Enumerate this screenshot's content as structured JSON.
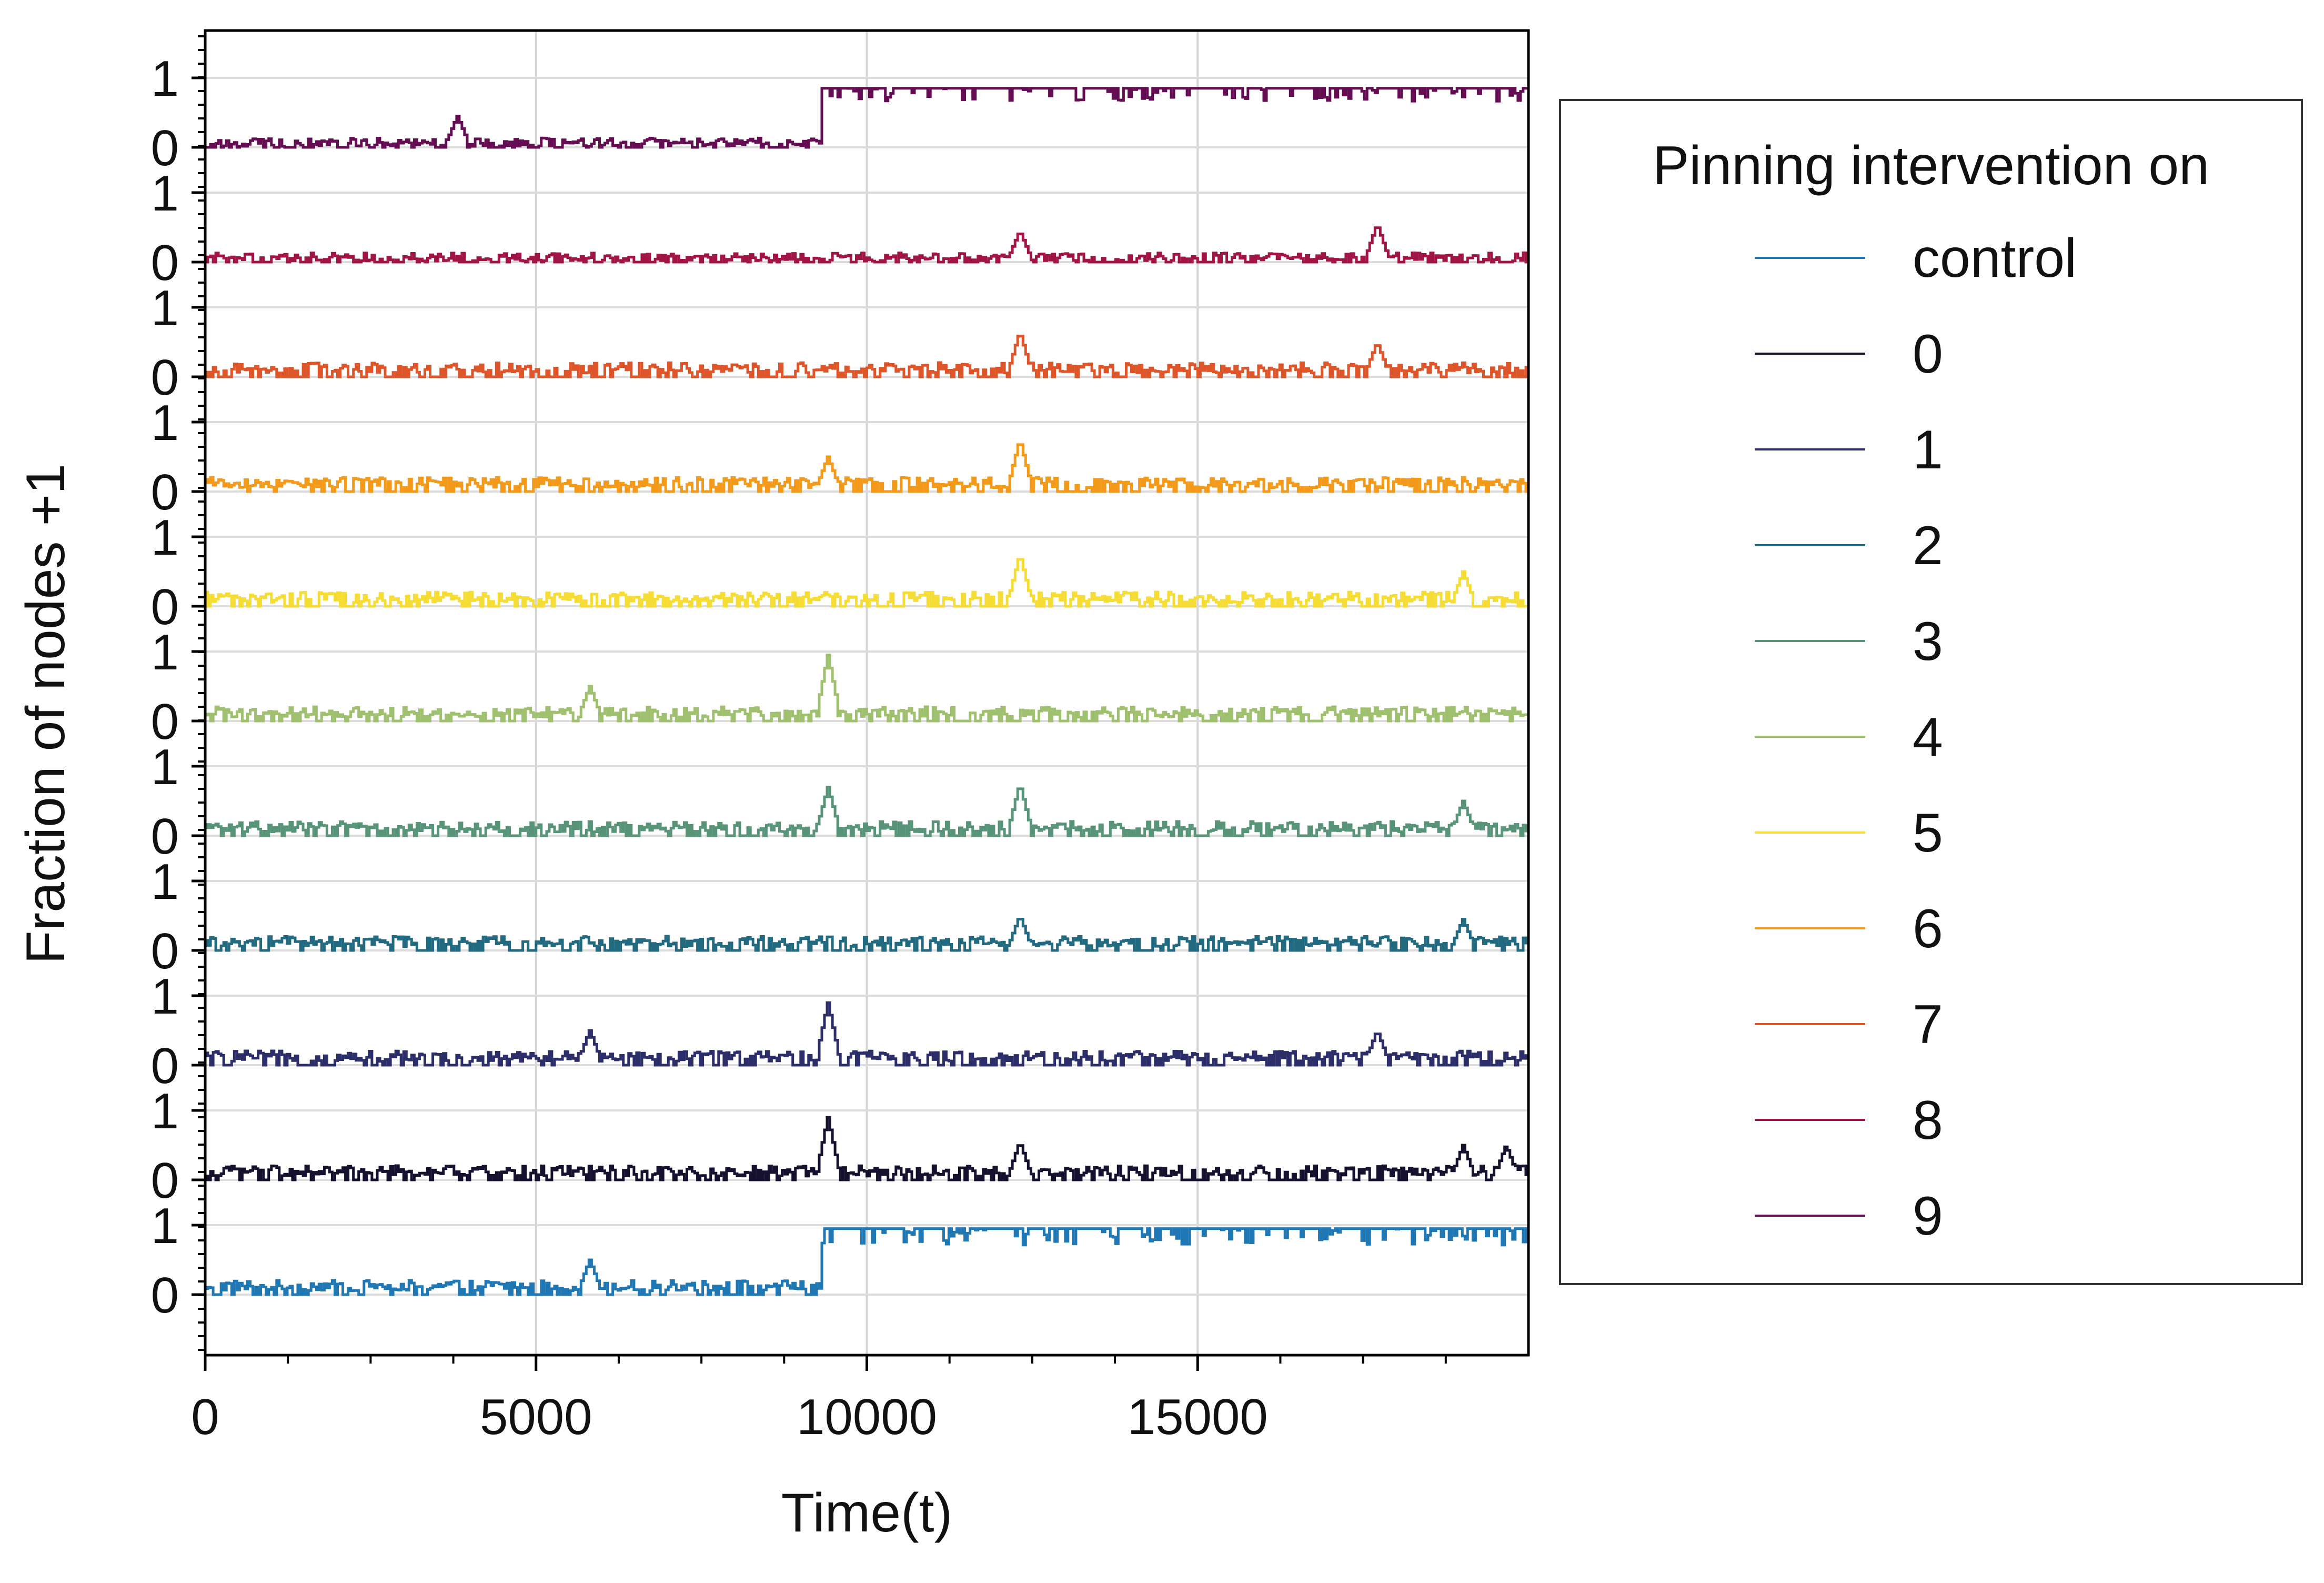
{
  "chart_data": {
    "type": "line",
    "xlabel": "Time(t)",
    "ylabel": "Fraction of nodes +1",
    "xlim": [
      0,
      20000
    ],
    "x_ticks": [
      "0",
      "5000",
      "10000",
      "15000"
    ],
    "x_tick_values": [
      0,
      5000,
      10000,
      15000
    ],
    "y_tick_labels": [
      "0",
      "1"
    ],
    "grid": true,
    "stacked_panels": true,
    "legend": {
      "title": "Pinning intervention on",
      "placement": "right, outside plot",
      "entries": [
        "control",
        "0",
        "1",
        "2",
        "3",
        "4",
        "5",
        "6",
        "7",
        "8",
        "9"
      ]
    },
    "series": [
      {
        "name": "control",
        "color": "#1f77b4",
        "baseline": 0.1,
        "switch_at": 9300,
        "after": 0.95,
        "noise": 0.15,
        "spikes": [
          {
            "x": 5800,
            "y": 0.5
          }
        ]
      },
      {
        "name": "0",
        "color": "#16112e",
        "baseline": 0.1,
        "noise": 0.15,
        "spikes": [
          {
            "x": 9400,
            "y": 0.9
          },
          {
            "x": 12300,
            "y": 0.55
          },
          {
            "x": 19000,
            "y": 0.5
          },
          {
            "x": 19650,
            "y": 0.5
          }
        ]
      },
      {
        "name": "1",
        "color": "#2b2e68",
        "baseline": 0.1,
        "noise": 0.15,
        "spikes": [
          {
            "x": 9400,
            "y": 0.9
          },
          {
            "x": 5800,
            "y": 0.5
          },
          {
            "x": 17700,
            "y": 0.5
          }
        ]
      },
      {
        "name": "2",
        "color": "#226a80",
        "baseline": 0.1,
        "noise": 0.15,
        "spikes": [
          {
            "x": 12300,
            "y": 0.5
          },
          {
            "x": 19000,
            "y": 0.45
          }
        ]
      },
      {
        "name": "3",
        "color": "#579478",
        "baseline": 0.1,
        "noise": 0.15,
        "spikes": [
          {
            "x": 9400,
            "y": 0.7
          },
          {
            "x": 12300,
            "y": 0.75
          },
          {
            "x": 19000,
            "y": 0.5
          }
        ]
      },
      {
        "name": "4",
        "color": "#9fc06e",
        "baseline": 0.1,
        "noise": 0.15,
        "spikes": [
          {
            "x": 9400,
            "y": 0.95
          },
          {
            "x": 5800,
            "y": 0.5
          }
        ]
      },
      {
        "name": "5",
        "color": "#f6dd35",
        "baseline": 0.1,
        "noise": 0.15,
        "spikes": [
          {
            "x": 12300,
            "y": 0.75
          },
          {
            "x": 19000,
            "y": 0.5
          }
        ]
      },
      {
        "name": "6",
        "color": "#f39a1a",
        "baseline": 0.1,
        "noise": 0.15,
        "spikes": [
          {
            "x": 12300,
            "y": 0.75
          },
          {
            "x": 9400,
            "y": 0.5
          }
        ]
      },
      {
        "name": "7",
        "color": "#dd5528",
        "baseline": 0.1,
        "noise": 0.15,
        "spikes": [
          {
            "x": 12300,
            "y": 0.65
          },
          {
            "x": 17700,
            "y": 0.5
          }
        ]
      },
      {
        "name": "8",
        "color": "#a11546",
        "baseline": 0.05,
        "noise": 0.12,
        "spikes": [
          {
            "x": 17700,
            "y": 0.55
          },
          {
            "x": 12300,
            "y": 0.45
          }
        ]
      },
      {
        "name": "9",
        "color": "#650d52",
        "baseline": 0.05,
        "switch_at": 9300,
        "after": 0.85,
        "noise": 0.12,
        "spikes": [
          {
            "x": 3800,
            "y": 0.45
          }
        ]
      }
    ]
  }
}
